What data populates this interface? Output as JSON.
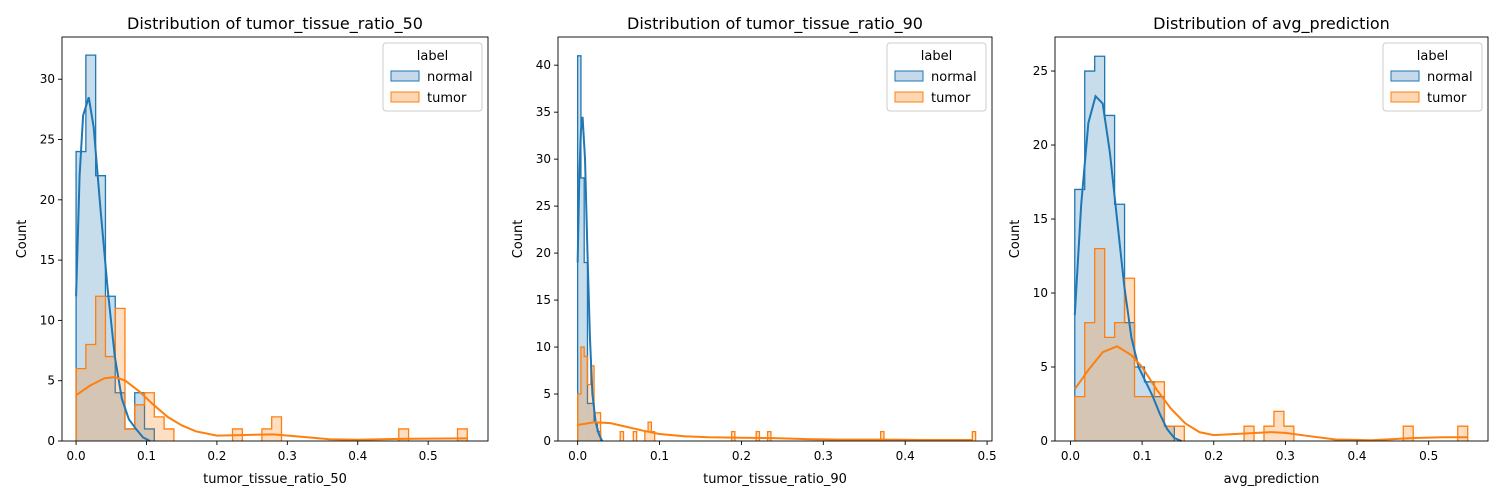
{
  "colors": {
    "normal": "#1f77b4",
    "tumor": "#ff7f0e",
    "normal_fill": "#c5d9ea",
    "tumor_fill": "#fdd7b4"
  },
  "chart_data": [
    {
      "type": "histogram",
      "title": "Distribution of tumor_tissue_ratio_50",
      "xlabel": "tumor_tissue_ratio_50",
      "ylabel": "Count",
      "xlim": [
        -0.02,
        0.585
      ],
      "ylim": [
        0,
        33.5
      ],
      "xticks": [
        0.0,
        0.1,
        0.2,
        0.3,
        0.4,
        0.5
      ],
      "xtick_labels": [
        "0.0",
        "0.1",
        "0.2",
        "0.3",
        "0.4",
        "0.5"
      ],
      "yticks": [
        0,
        5,
        10,
        15,
        20,
        25,
        30
      ],
      "legend": {
        "title": "label",
        "position": "top-right",
        "entries": [
          "normal",
          "tumor"
        ]
      },
      "series": [
        {
          "name": "normal",
          "bins": [
            [
              0.0,
              0.0139,
              24
            ],
            [
              0.0139,
              0.0278,
              32
            ],
            [
              0.0278,
              0.0417,
              22
            ],
            [
              0.0417,
              0.0556,
              12
            ],
            [
              0.0556,
              0.0694,
              4
            ],
            [
              0.0694,
              0.0833,
              1
            ],
            [
              0.0833,
              0.0972,
              4
            ],
            [
              0.0972,
              0.1111,
              1
            ]
          ],
          "kde": [
            [
              0.0,
              12
            ],
            [
              0.005,
              22
            ],
            [
              0.01,
              27
            ],
            [
              0.018,
              28.5
            ],
            [
              0.025,
              26
            ],
            [
              0.035,
              19
            ],
            [
              0.045,
              12.5
            ],
            [
              0.055,
              7
            ],
            [
              0.065,
              3.5
            ],
            [
              0.075,
              1.8
            ],
            [
              0.085,
              1
            ],
            [
              0.095,
              0.3
            ],
            [
              0.105,
              0
            ]
          ]
        },
        {
          "name": "tumor",
          "bins": [
            [
              0.0,
              0.0139,
              6
            ],
            [
              0.0139,
              0.0278,
              8
            ],
            [
              0.0278,
              0.0417,
              12
            ],
            [
              0.0417,
              0.0556,
              7
            ],
            [
              0.0556,
              0.0694,
              11
            ],
            [
              0.0694,
              0.0833,
              1
            ],
            [
              0.0833,
              0.0972,
              3
            ],
            [
              0.0972,
              0.1111,
              4
            ],
            [
              0.1111,
              0.125,
              2
            ],
            [
              0.125,
              0.1389,
              1
            ],
            [
              0.2222,
              0.2361,
              1
            ],
            [
              0.2639,
              0.2778,
              1
            ],
            [
              0.2778,
              0.2917,
              2
            ],
            [
              0.4583,
              0.4722,
              1
            ],
            [
              0.5417,
              0.5556,
              1
            ]
          ],
          "kde": [
            [
              0.0,
              3.8
            ],
            [
              0.02,
              4.6
            ],
            [
              0.04,
              5.2
            ],
            [
              0.055,
              5.3
            ],
            [
              0.07,
              5
            ],
            [
              0.09,
              4.1
            ],
            [
              0.11,
              3
            ],
            [
              0.13,
              2
            ],
            [
              0.15,
              1.3
            ],
            [
              0.17,
              0.8
            ],
            [
              0.2,
              0.45
            ],
            [
              0.24,
              0.5
            ],
            [
              0.28,
              0.55
            ],
            [
              0.32,
              0.35
            ],
            [
              0.36,
              0.15
            ],
            [
              0.4,
              0.1
            ],
            [
              0.46,
              0.18
            ],
            [
              0.5,
              0.2
            ],
            [
              0.556,
              0.22
            ]
          ]
        }
      ]
    },
    {
      "type": "histogram",
      "title": "Distribution of tumor_tissue_ratio_90",
      "xlabel": "tumor_tissue_ratio_90",
      "ylabel": "Count",
      "xlim": [
        -0.024,
        0.506
      ],
      "ylim": [
        0,
        43
      ],
      "xticks": [
        0.0,
        0.1,
        0.2,
        0.3,
        0.4,
        0.5
      ],
      "xtick_labels": [
        "0.0",
        "0.1",
        "0.2",
        "0.3",
        "0.4",
        "0.5"
      ],
      "yticks": [
        0,
        5,
        10,
        15,
        20,
        25,
        30,
        35,
        40
      ],
      "legend": {
        "title": "label",
        "position": "top-right",
        "entries": [
          "normal",
          "tumor"
        ]
      },
      "series": [
        {
          "name": "normal",
          "bins": [
            [
              0.0,
              0.004,
              41
            ],
            [
              0.004,
              0.008,
              28
            ],
            [
              0.008,
              0.012,
              19
            ],
            [
              0.012,
              0.016,
              4
            ],
            [
              0.016,
              0.02,
              4
            ],
            [
              0.02,
              0.024,
              2
            ],
            [
              0.024,
              0.028,
              1
            ]
          ],
          "kde": [
            [
              0.0,
              19
            ],
            [
              0.002,
              28
            ],
            [
              0.004,
              33
            ],
            [
              0.006,
              34.5
            ],
            [
              0.009,
              30
            ],
            [
              0.012,
              20
            ],
            [
              0.015,
              11
            ],
            [
              0.018,
              5
            ],
            [
              0.022,
              2
            ],
            [
              0.026,
              0.7
            ],
            [
              0.03,
              0
            ]
          ]
        },
        {
          "name": "tumor",
          "bins": [
            [
              0.0,
              0.004,
              5
            ],
            [
              0.004,
              0.008,
              10
            ],
            [
              0.008,
              0.012,
              9
            ],
            [
              0.012,
              0.016,
              6
            ],
            [
              0.016,
              0.02,
              8
            ],
            [
              0.02,
              0.024,
              3
            ],
            [
              0.024,
              0.028,
              3
            ],
            [
              0.052,
              0.056,
              1
            ],
            [
              0.068,
              0.072,
              1
            ],
            [
              0.082,
              0.086,
              1
            ],
            [
              0.086,
              0.09,
              2
            ],
            [
              0.09,
              0.094,
              1
            ],
            [
              0.188,
              0.192,
              1
            ],
            [
              0.218,
              0.222,
              1
            ],
            [
              0.232,
              0.236,
              1
            ],
            [
              0.37,
              0.374,
              1
            ],
            [
              0.482,
              0.486,
              1
            ]
          ],
          "kde": [
            [
              0.0,
              1.7
            ],
            [
              0.02,
              2
            ],
            [
              0.04,
              1.9
            ],
            [
              0.06,
              1.5
            ],
            [
              0.08,
              1.1
            ],
            [
              0.1,
              0.75
            ],
            [
              0.13,
              0.5
            ],
            [
              0.16,
              0.4
            ],
            [
              0.2,
              0.35
            ],
            [
              0.24,
              0.3
            ],
            [
              0.28,
              0.2
            ],
            [
              0.32,
              0.15
            ],
            [
              0.37,
              0.15
            ],
            [
              0.42,
              0.1
            ],
            [
              0.482,
              0.1
            ]
          ]
        }
      ]
    },
    {
      "type": "histogram",
      "title": "Distribution of avg_prediction",
      "xlabel": "avg_prediction",
      "ylabel": "Count",
      "xlim": [
        -0.0216,
        0.5828
      ],
      "ylim": [
        0,
        27.3
      ],
      "xticks": [
        0.0,
        0.1,
        0.2,
        0.3,
        0.4,
        0.5
      ],
      "xtick_labels": [
        "0.0",
        "0.1",
        "0.2",
        "0.3",
        "0.4",
        "0.5"
      ],
      "yticks": [
        0,
        5,
        10,
        15,
        20,
        25
      ],
      "legend": {
        "title": "label",
        "position": "top-right",
        "entries": [
          "normal",
          "tumor"
        ]
      },
      "series": [
        {
          "name": "normal",
          "bins": [
            [
              0.006,
              0.0199,
              17
            ],
            [
              0.0199,
              0.0338,
              25
            ],
            [
              0.0338,
              0.0477,
              26
            ],
            [
              0.0477,
              0.0616,
              22
            ],
            [
              0.0616,
              0.0755,
              16
            ],
            [
              0.0755,
              0.0894,
              8
            ],
            [
              0.0894,
              0.1033,
              5
            ],
            [
              0.1033,
              0.1172,
              4
            ],
            [
              0.1172,
              0.1311,
              3
            ],
            [
              0.1311,
              0.145,
              1
            ]
          ],
          "kde": [
            [
              0.006,
              8.5
            ],
            [
              0.015,
              16
            ],
            [
              0.025,
              21.5
            ],
            [
              0.035,
              23.3
            ],
            [
              0.045,
              22.8
            ],
            [
              0.055,
              19.5
            ],
            [
              0.065,
              15
            ],
            [
              0.075,
              10.5
            ],
            [
              0.085,
              7
            ],
            [
              0.095,
              5
            ],
            [
              0.105,
              4
            ],
            [
              0.115,
              3
            ],
            [
              0.125,
              1.8
            ],
            [
              0.135,
              0.8
            ],
            [
              0.145,
              0.2
            ],
            [
              0.155,
              0
            ]
          ]
        },
        {
          "name": "tumor",
          "bins": [
            [
              0.006,
              0.0199,
              3
            ],
            [
              0.0199,
              0.0338,
              8
            ],
            [
              0.0338,
              0.0477,
              13
            ],
            [
              0.0477,
              0.0616,
              7
            ],
            [
              0.0616,
              0.0755,
              8
            ],
            [
              0.0755,
              0.0894,
              11
            ],
            [
              0.0894,
              0.1033,
              3
            ],
            [
              0.1033,
              0.1172,
              3
            ],
            [
              0.1172,
              0.1311,
              4
            ],
            [
              0.1311,
              0.145,
              1
            ],
            [
              0.145,
              0.1589,
              1
            ],
            [
              0.2423,
              0.2562,
              1
            ],
            [
              0.2701,
              0.284,
              1
            ],
            [
              0.284,
              0.2979,
              2
            ],
            [
              0.2979,
              0.3118,
              1
            ],
            [
              0.4645,
              0.4784,
              1
            ],
            [
              0.5406,
              0.5545,
              1
            ]
          ],
          "kde": [
            [
              0.006,
              3.5
            ],
            [
              0.025,
              4.8
            ],
            [
              0.045,
              6
            ],
            [
              0.065,
              6.4
            ],
            [
              0.085,
              5.8
            ],
            [
              0.1,
              5
            ],
            [
              0.12,
              3.5
            ],
            [
              0.14,
              2.2
            ],
            [
              0.16,
              1.2
            ],
            [
              0.18,
              0.6
            ],
            [
              0.2,
              0.4
            ],
            [
              0.24,
              0.5
            ],
            [
              0.28,
              0.6
            ],
            [
              0.3,
              0.55
            ],
            [
              0.33,
              0.35
            ],
            [
              0.37,
              0.1
            ],
            [
              0.42,
              0.05
            ],
            [
              0.48,
              0.2
            ],
            [
              0.52,
              0.25
            ],
            [
              0.554,
              0.25
            ]
          ]
        }
      ]
    }
  ]
}
